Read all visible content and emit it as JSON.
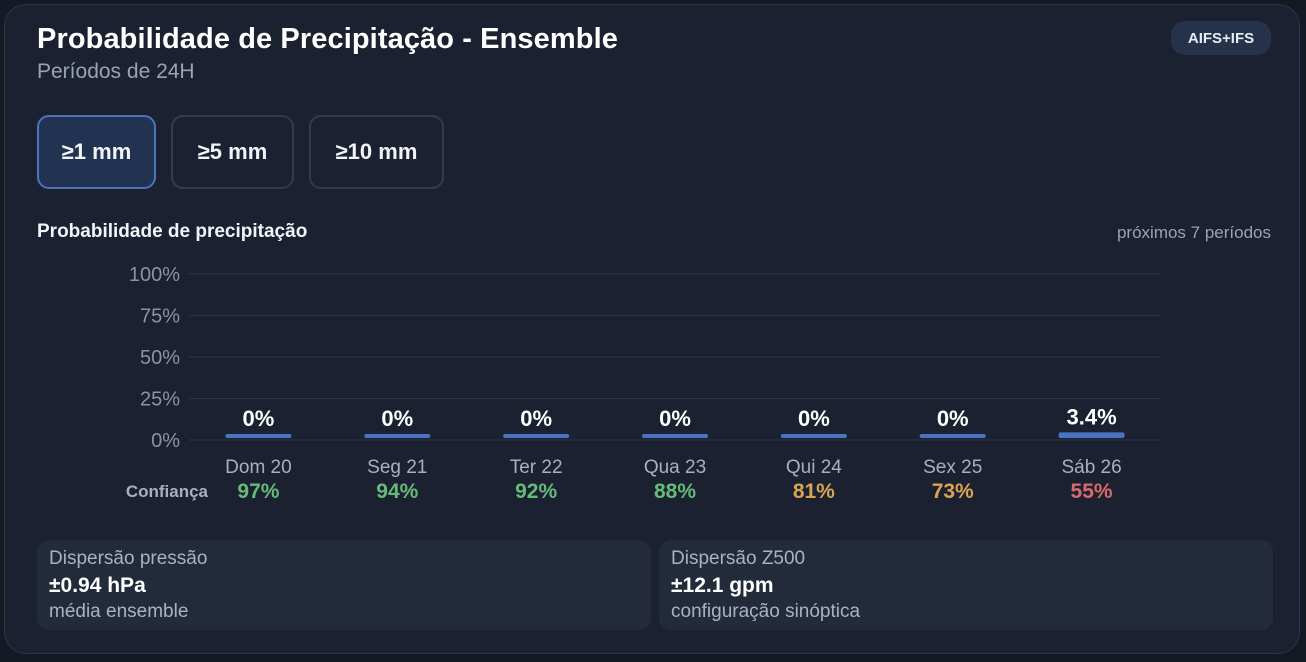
{
  "header": {
    "title": "Probabilidade de Precipitação - Ensemble",
    "subtitle": "Períodos de 24H",
    "badge": "AIFS+IFS"
  },
  "thresholds": [
    {
      "label": "≥1 mm",
      "active": true
    },
    {
      "label": "≥5 mm",
      "active": false
    },
    {
      "label": "≥10 mm",
      "active": false
    }
  ],
  "section": {
    "title": "Probabilidade de precipitação",
    "note": "próximos 7 períodos"
  },
  "chart_data": {
    "type": "bar",
    "categories": [
      "Dom 20",
      "Seg 21",
      "Ter 22",
      "Qua 23",
      "Qui 24",
      "Sex 25",
      "Sáb 26"
    ],
    "values": [
      0,
      0,
      0,
      0,
      0,
      0,
      3.4
    ],
    "value_labels": [
      "0%",
      "0%",
      "0%",
      "0%",
      "0%",
      "0%",
      "3.4%"
    ],
    "yticks": [
      "100%",
      "75%",
      "50%",
      "25%",
      "0%"
    ],
    "ylim": [
      0,
      100
    ],
    "grid": true,
    "bar_color": "#4a74c2",
    "confidence_label": "Confiança",
    "confidence": [
      "97%",
      "94%",
      "92%",
      "88%",
      "81%",
      "73%",
      "55%"
    ],
    "confidence_colors": [
      "#66bb7a",
      "#66bb7a",
      "#66bb7a",
      "#66bb7a",
      "#d9a552",
      "#d9a552",
      "#d96a6a"
    ]
  },
  "stats": [
    {
      "label": "Dispersão pressão",
      "value": "±0.94 hPa",
      "sub": "média ensemble"
    },
    {
      "label": "Dispersão Z500",
      "value": "±12.1 gpm",
      "sub": "configuração sinóptica"
    }
  ]
}
